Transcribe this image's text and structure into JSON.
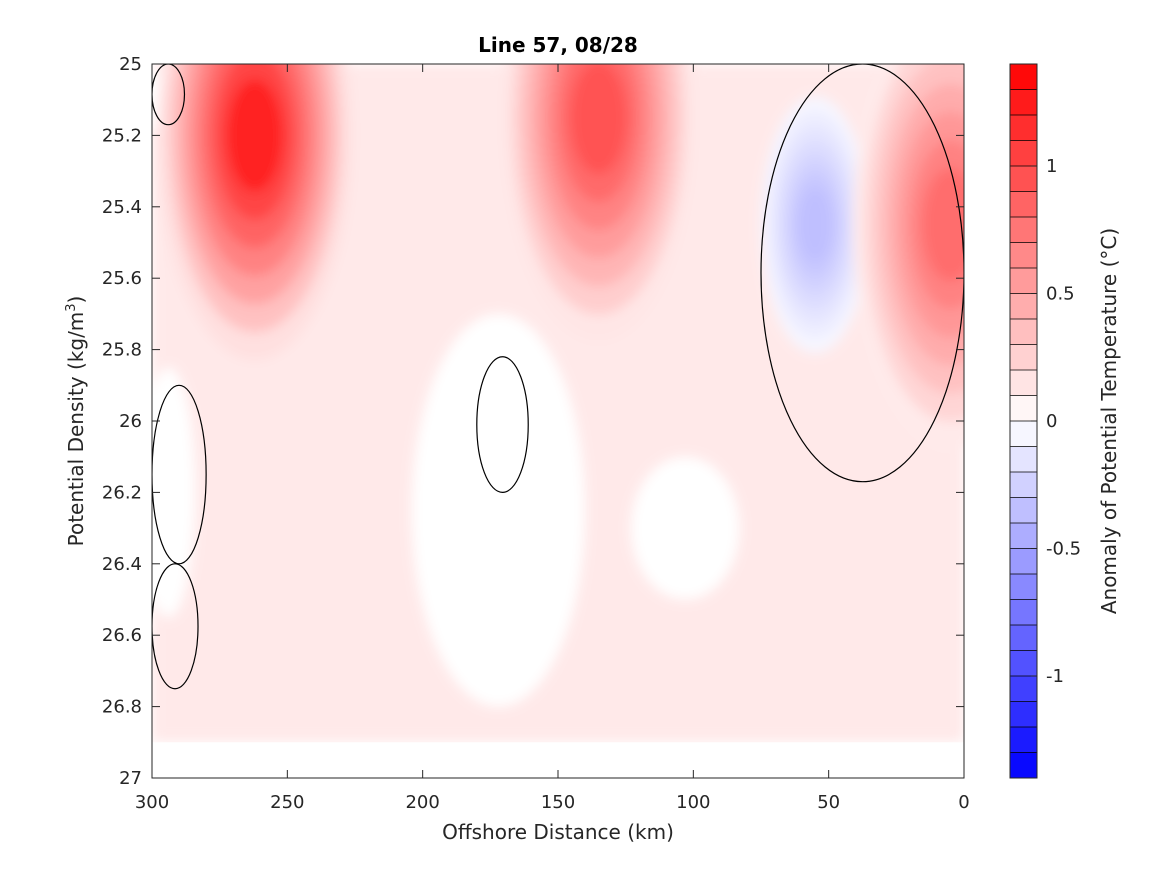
{
  "chart_data": {
    "type": "heatmap",
    "subtype": "filled-contour",
    "title": "Line 57, 08/28",
    "xlabel": "Offshore Distance (km)",
    "ylabel_prefix": "Potential Density (kg/m",
    "ylabel_sup": "3",
    "ylabel_suffix": ")",
    "xlim": [
      300,
      0
    ],
    "x_reversed": true,
    "ylim": [
      25,
      27
    ],
    "y_reversed": true,
    "xticks": [
      300,
      250,
      200,
      150,
      100,
      50,
      0
    ],
    "yticks": [
      25,
      25.2,
      25.4,
      25.6,
      25.8,
      26,
      26.2,
      26.4,
      26.6,
      26.8,
      27
    ],
    "ytick_labels": [
      "25",
      "25.2",
      "25.4",
      "25.6",
      "25.8",
      "26",
      "26.2",
      "26.4",
      "26.6",
      "26.8",
      "27"
    ],
    "colorbar": {
      "label": "Anomaly of Potential Temperature (°C)",
      "range": [
        -1.4,
        1.4
      ],
      "step": 0.1,
      "ticks": [
        -1,
        -0.5,
        0,
        0.5,
        1
      ],
      "colormap": "blue-white-red",
      "negative_color": "#0000ff",
      "positive_color": "#ff0000",
      "zero_color": "#ffffff"
    },
    "data_extent": {
      "x_min": 0,
      "x_max": 300,
      "y_max": 26.9
    },
    "features": [
      {
        "name": "warm core",
        "x": 262,
        "y": 25.2,
        "value": 1.2
      },
      {
        "name": "warm core",
        "x": 135,
        "y": 25.15,
        "value": 0.95
      },
      {
        "name": "cool core",
        "x": 55,
        "y": 25.45,
        "value": -0.35
      },
      {
        "name": "warm nearshore",
        "x": 5,
        "y": 25.45,
        "value": 0.8
      }
    ],
    "zero_contour_regions": [
      {
        "x_range": [
          288,
          300
        ],
        "y_range": [
          25,
          25.17
        ]
      },
      {
        "x_range": [
          280,
          300
        ],
        "y_range": [
          25.9,
          26.4
        ]
      },
      {
        "x_range": [
          283,
          300
        ],
        "y_range": [
          26.4,
          26.75
        ]
      },
      {
        "x_range": [
          161,
          180
        ],
        "y_range": [
          25.82,
          26.2
        ]
      },
      {
        "x_range": [
          0,
          75
        ],
        "y_range": [
          25,
          26.17
        ]
      }
    ]
  }
}
